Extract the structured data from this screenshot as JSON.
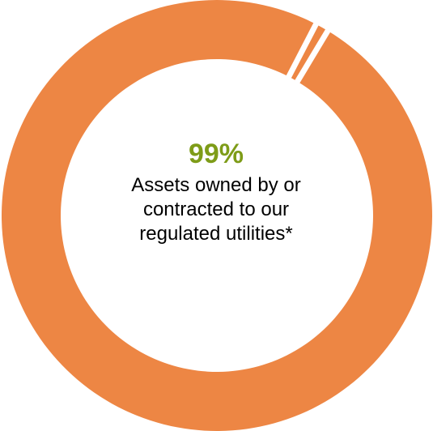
{
  "chart_data": {
    "type": "pie",
    "style": "donut",
    "slices": [
      {
        "label": "Assets owned by or contracted to our regulated utilities",
        "value": 99,
        "color": "#ED8644"
      },
      {
        "value": 1,
        "color": "#ED8644"
      }
    ],
    "separator_color": "#FFFFFF",
    "center": {
      "value_text": "99%",
      "value_color": "#7E9C18",
      "caption_lines": [
        "Assets owned by or",
        "contracted to our",
        "regulated utilities*"
      ]
    }
  }
}
